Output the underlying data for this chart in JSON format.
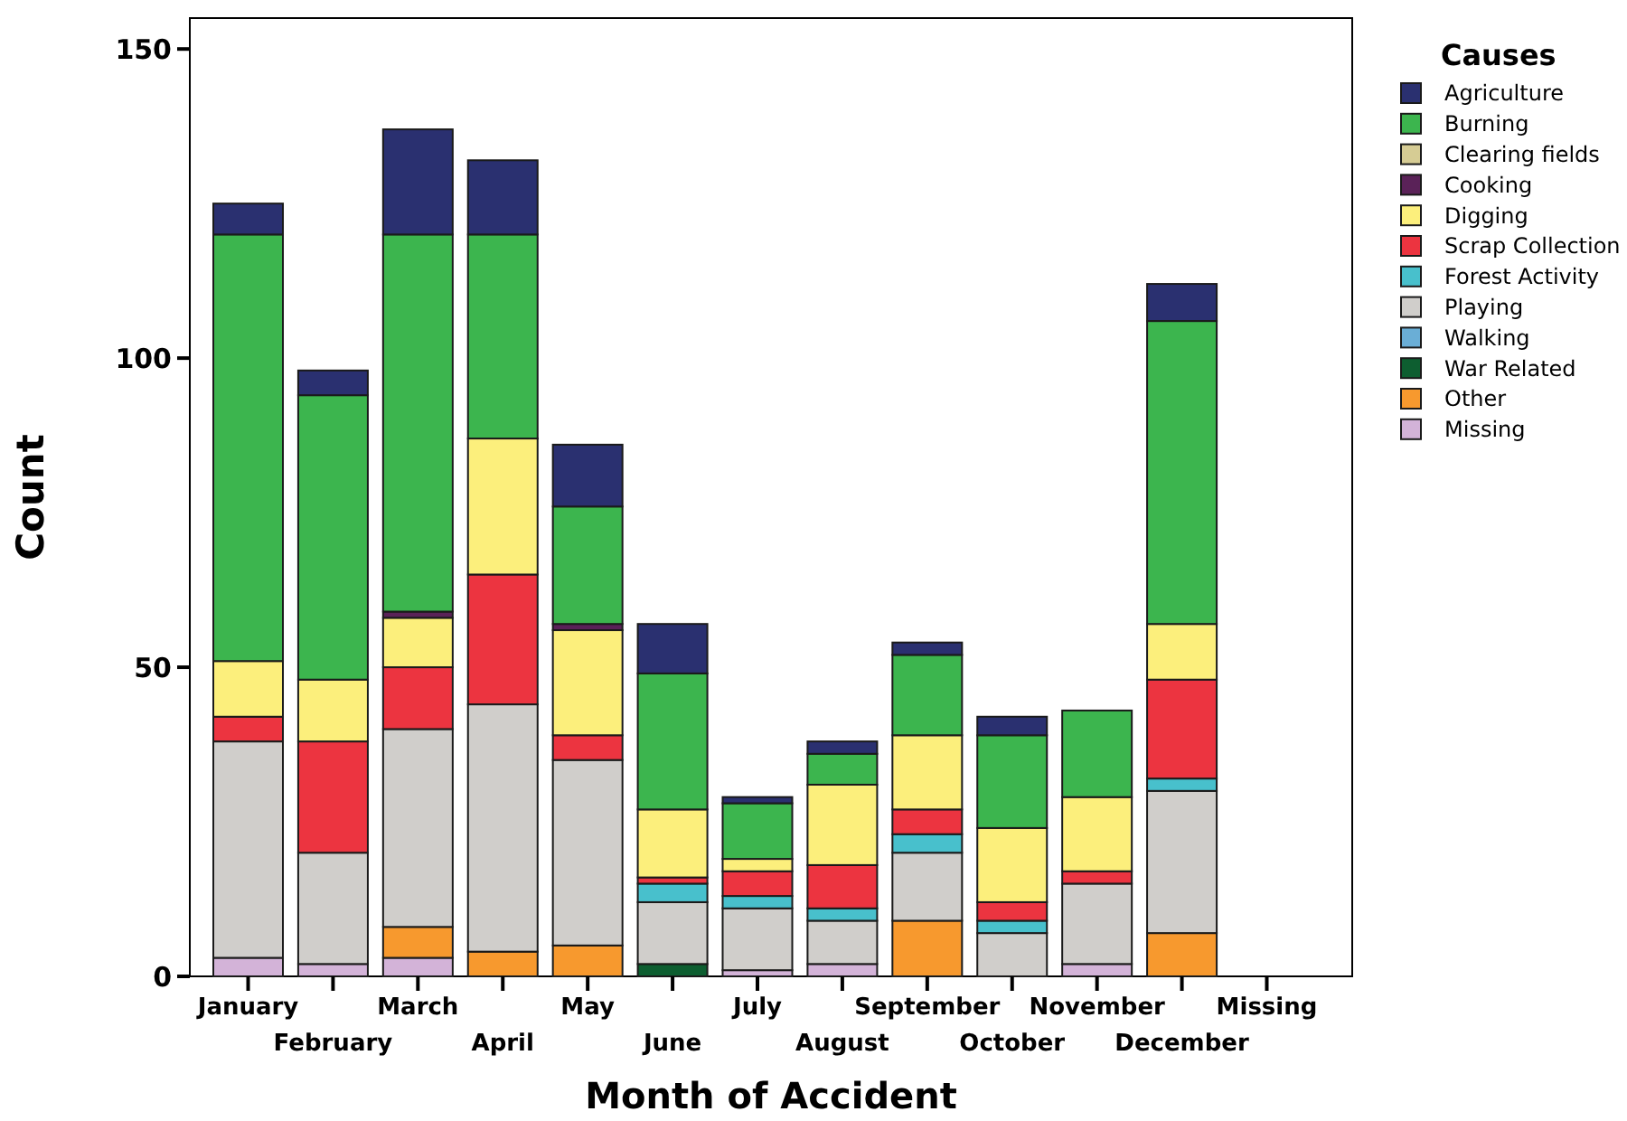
{
  "chart_data": {
    "type": "bar",
    "stacked": true,
    "xlabel": "Month of Accident",
    "ylabel": "Count",
    "legend_title": "Causes",
    "legend": "right",
    "grid": false,
    "categories": [
      "January",
      "February",
      "March",
      "April",
      "May",
      "June",
      "July",
      "August",
      "September",
      "October",
      "November",
      "December",
      "Missing"
    ],
    "ylim": [
      0,
      155
    ],
    "yticks": [
      0,
      50,
      100,
      150
    ],
    "series": [
      {
        "name": "Missing",
        "color": "#d3b3d8",
        "values": [
          3,
          2,
          3,
          0,
          0,
          0,
          1,
          2,
          0,
          0,
          2,
          0,
          null
        ]
      },
      {
        "name": "Other",
        "color": "#f7992e",
        "values": [
          0,
          0,
          5,
          4,
          5,
          0,
          0,
          0,
          9,
          0,
          0,
          7,
          null
        ]
      },
      {
        "name": "War Related",
        "color": "#0d5e30",
        "values": [
          0,
          0,
          0,
          0,
          0,
          2,
          0,
          0,
          0,
          0,
          0,
          0,
          null
        ]
      },
      {
        "name": "Walking",
        "color": "#6aaed6",
        "values": [
          0,
          0,
          0,
          0,
          0,
          0,
          0,
          0,
          0,
          0,
          0,
          0,
          null
        ]
      },
      {
        "name": "Playing",
        "color": "#d0cecb",
        "values": [
          35,
          18,
          32,
          40,
          30,
          10,
          10,
          7,
          11,
          7,
          13,
          23,
          null
        ]
      },
      {
        "name": "Forest Activity",
        "color": "#48c0cc",
        "values": [
          0,
          0,
          0,
          0,
          0,
          3,
          2,
          2,
          3,
          2,
          0,
          2,
          null
        ]
      },
      {
        "name": "Scrap Collection",
        "color": "#ec3440",
        "values": [
          4,
          18,
          10,
          21,
          4,
          1,
          4,
          7,
          4,
          3,
          2,
          16,
          null
        ]
      },
      {
        "name": "Digging",
        "color": "#fcef7c",
        "values": [
          9,
          10,
          8,
          22,
          17,
          11,
          2,
          13,
          12,
          12,
          12,
          9,
          null
        ]
      },
      {
        "name": "Cooking",
        "color": "#5a2258",
        "values": [
          0,
          0,
          1,
          0,
          1,
          0,
          0,
          0,
          0,
          0,
          0,
          0,
          null
        ]
      },
      {
        "name": "Clearing fields",
        "color": "#d6cc94",
        "values": [
          0,
          0,
          0,
          0,
          0,
          0,
          0,
          0,
          0,
          0,
          0,
          0,
          null
        ]
      },
      {
        "name": "Burning",
        "color": "#3cb54e",
        "values": [
          69,
          46,
          61,
          33,
          19,
          22,
          9,
          5,
          13,
          15,
          14,
          49,
          null
        ]
      },
      {
        "name": "Agriculture",
        "color": "#2a3070",
        "values": [
          5,
          4,
          17,
          12,
          10,
          8,
          1,
          2,
          2,
          3,
          0,
          6,
          null
        ]
      }
    ]
  }
}
